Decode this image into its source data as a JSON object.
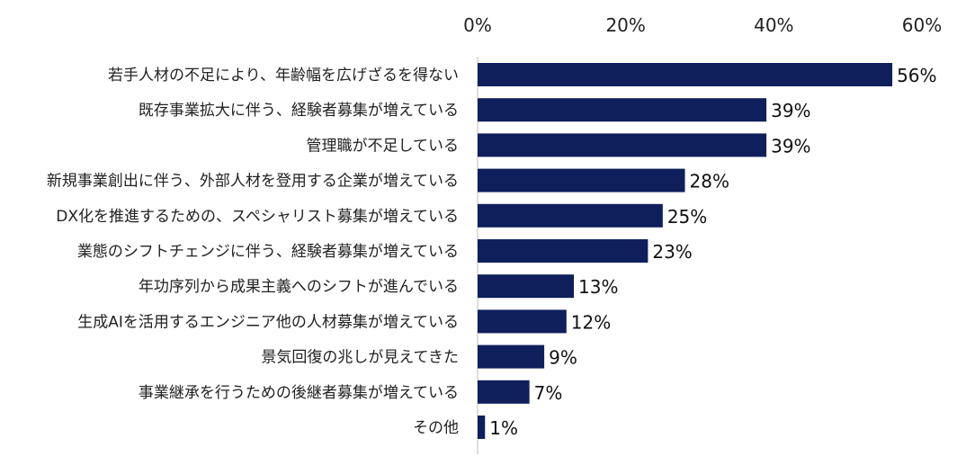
{
  "chart_data": {
    "type": "bar",
    "orientation": "horizontal",
    "categories": [
      "若手人材の不足により、年齢幅を広げざるを得ない",
      "既存事業拡大に伴う、経験者募集が増えている",
      "管理職が不足している",
      "新規事業創出に伴う、外部人材を登用する企業が増えている",
      "DX化を推進するための、スペシャリスト募集が増えている",
      "業態のシフトチェンジに伴う、経験者募集が増えている",
      "年功序列から成果主義へのシフトが進んでいる",
      "生成AIを活用するエンジニア他の人材募集が増えている",
      "景気回復の兆しが見えてきた",
      "事業継承を行うための後継者募集が増えている",
      "その他"
    ],
    "values": [
      56,
      39,
      39,
      28,
      25,
      23,
      13,
      12,
      9,
      7,
      1
    ],
    "value_labels": [
      "56%",
      "39%",
      "39%",
      "28%",
      "25%",
      "23%",
      "13%",
      "12%",
      "9%",
      "7%",
      "1%"
    ],
    "xlim": [
      0,
      60
    ],
    "xticks": [
      0,
      20,
      40,
      60
    ],
    "xtick_labels": [
      "0%",
      "20%",
      "40%",
      "60%"
    ],
    "axis_position": "top",
    "grid": false,
    "legend": "none",
    "bar_color": "#0f1f5c",
    "axis_color": "#bfbfbf"
  }
}
